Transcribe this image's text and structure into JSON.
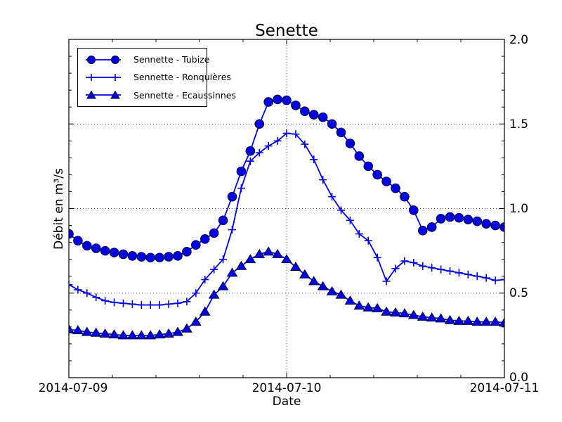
{
  "figure": {
    "background": "#ffffff"
  },
  "colors": {
    "line": "#0000e6",
    "marker_fill": "#0000dd",
    "marker_edge": "#000046",
    "grid": "#444444",
    "frame": "#000000",
    "text": "#000000"
  },
  "chart_data": {
    "type": "line",
    "title": "Senette",
    "xlabel": "Date",
    "ylabel": "Débit en m³/s",
    "xlim_hours": [
      0,
      48
    ],
    "ylim": [
      0.0,
      2.0
    ],
    "x_tick_labels": [
      "2014-07-09",
      "2014-07-10",
      "2014-07-11"
    ],
    "x_tick_hours": [
      0,
      24,
      48
    ],
    "x_minor_tick_step_hours": 4.8,
    "y_tick_labels": [
      "0.0",
      "0.5",
      "1.0",
      "1.5",
      "2.0"
    ],
    "y_ticks": [
      0.0,
      0.5,
      1.0,
      1.5,
      2.0
    ],
    "y_minor_tick_step": 0.1,
    "grid": {
      "style": "dotted",
      "y_values": [
        0.5,
        1.0,
        1.5
      ],
      "x_values_hours": [
        24
      ]
    },
    "legend_position": "upper left",
    "x_hours": [
      0,
      1,
      2,
      3,
      4,
      5,
      6,
      7,
      8,
      9,
      10,
      11,
      12,
      13,
      14,
      15,
      16,
      17,
      18,
      19,
      20,
      21,
      22,
      23,
      24,
      25,
      26,
      27,
      28,
      29,
      30,
      31,
      32,
      33,
      34,
      35,
      36,
      37,
      38,
      39,
      40,
      41,
      42,
      43,
      44,
      45,
      46,
      47,
      48
    ],
    "series": [
      {
        "name": "Sennette - Tubize",
        "marker": "circle",
        "values": [
          0.85,
          0.81,
          0.78,
          0.765,
          0.75,
          0.74,
          0.73,
          0.72,
          0.715,
          0.71,
          0.71,
          0.715,
          0.72,
          0.745,
          0.785,
          0.82,
          0.855,
          0.93,
          1.07,
          1.22,
          1.34,
          1.5,
          1.63,
          1.645,
          1.64,
          1.61,
          1.575,
          1.555,
          1.54,
          1.5,
          1.45,
          1.385,
          1.31,
          1.25,
          1.2,
          1.16,
          1.12,
          1.07,
          0.99,
          0.87,
          0.89,
          0.94,
          0.95,
          0.945,
          0.935,
          0.925,
          0.91,
          0.9,
          0.89
        ]
      },
      {
        "name": "Sennette - Ronquières",
        "marker": "plus",
        "values": [
          0.55,
          0.52,
          0.5,
          0.475,
          0.455,
          0.445,
          0.44,
          0.435,
          0.43,
          0.43,
          0.43,
          0.435,
          0.44,
          0.45,
          0.5,
          0.58,
          0.64,
          0.7,
          0.875,
          1.12,
          1.28,
          1.33,
          1.37,
          1.4,
          1.445,
          1.44,
          1.38,
          1.29,
          1.17,
          1.07,
          0.99,
          0.93,
          0.85,
          0.81,
          0.71,
          0.57,
          0.645,
          0.69,
          0.68,
          0.66,
          0.65,
          0.64,
          0.63,
          0.62,
          0.61,
          0.6,
          0.59,
          0.575,
          0.58
        ]
      },
      {
        "name": "Sennette - Ecaussinnes",
        "marker": "triangle",
        "values": [
          0.285,
          0.28,
          0.27,
          0.265,
          0.26,
          0.255,
          0.25,
          0.25,
          0.25,
          0.25,
          0.255,
          0.26,
          0.27,
          0.29,
          0.33,
          0.39,
          0.49,
          0.54,
          0.62,
          0.66,
          0.7,
          0.73,
          0.745,
          0.73,
          0.7,
          0.655,
          0.61,
          0.57,
          0.54,
          0.51,
          0.49,
          0.455,
          0.425,
          0.415,
          0.41,
          0.39,
          0.385,
          0.38,
          0.37,
          0.36,
          0.355,
          0.35,
          0.34,
          0.335,
          0.335,
          0.33,
          0.33,
          0.33,
          0.325
        ]
      }
    ]
  }
}
